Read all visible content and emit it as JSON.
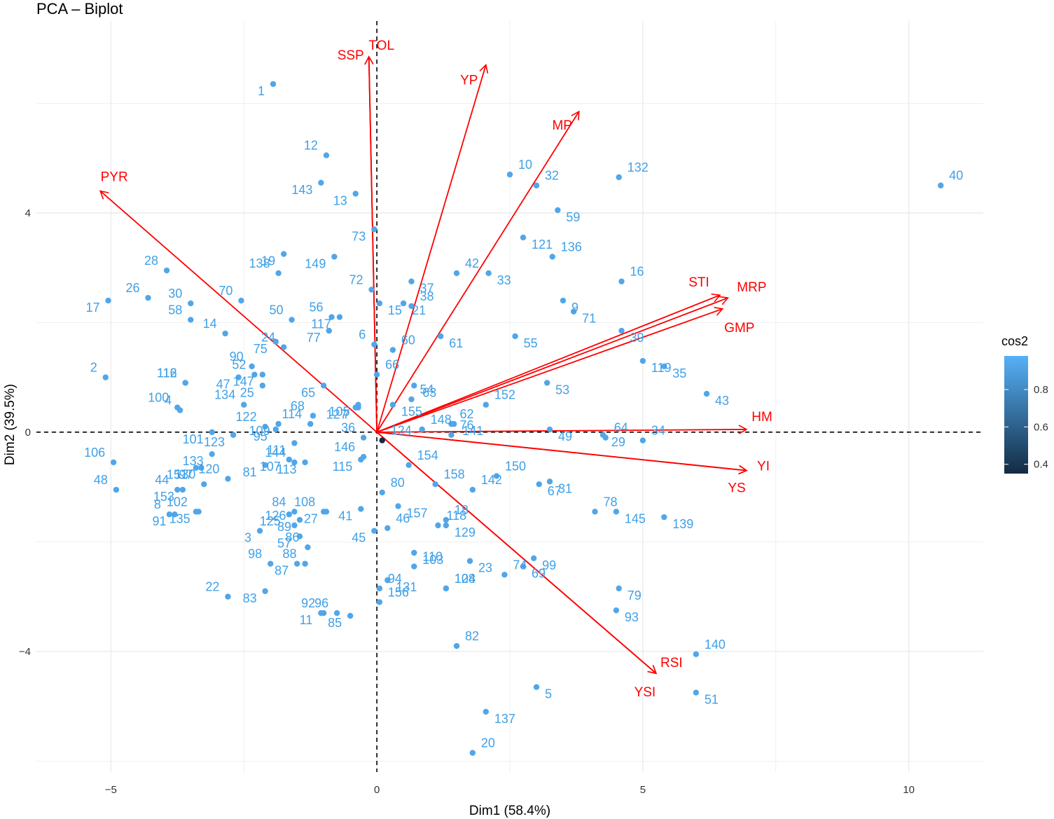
{
  "chart_data": {
    "type": "scatter",
    "title": "PCA – Biplot",
    "xlabel": "Dim1 (58.4%)",
    "ylabel": "Dim2 (39.5%)",
    "xlim": [
      -6.4,
      11.4
    ],
    "ylim": [
      -6.2,
      7.5
    ],
    "x_ticks": [
      -5,
      0,
      5,
      10
    ],
    "x_tick_labels": [
      "−5",
      "0",
      "5",
      "10"
    ],
    "y_ticks": [
      -4,
      0,
      4
    ],
    "y_tick_labels": [
      "−4",
      "0",
      "4"
    ],
    "grid": true,
    "legend": {
      "title": "cos2",
      "position": "right",
      "range": [
        0.35,
        0.98
      ],
      "ticks": [
        0.4,
        0.6,
        0.8
      ],
      "tick_labels": [
        "0.4",
        "0.6",
        "0.8"
      ],
      "color_low": "#132b43",
      "color_high": "#56b1f7"
    },
    "point_color": "#3fa0e8",
    "arrow_color": "#ff0000",
    "individuals": [
      {
        "label": "1",
        "x": -1.95,
        "y": 6.35,
        "cos2": 0.93
      },
      {
        "label": "2",
        "x": -5.1,
        "y": 1.0,
        "cos2": 0.93
      },
      {
        "label": "3",
        "x": -2.2,
        "y": -1.8,
        "cos2": 0.93
      },
      {
        "label": "4",
        "x": -3.7,
        "y": 0.4,
        "cos2": 0.93
      },
      {
        "label": "5",
        "x": 3.0,
        "y": -4.65,
        "cos2": 0.93
      },
      {
        "label": "6",
        "x": -0.05,
        "y": 1.6,
        "cos2": 0.93
      },
      {
        "label": "7",
        "x": -0.35,
        "y": 0.45,
        "cos2": 0.93
      },
      {
        "label": "8",
        "x": -3.9,
        "y": -1.5,
        "cos2": 0.93
      },
      {
        "label": "9",
        "x": 3.5,
        "y": 2.4,
        "cos2": 0.93
      },
      {
        "label": "10",
        "x": 2.5,
        "y": 4.7,
        "cos2": 0.93
      },
      {
        "label": "11",
        "x": -1.05,
        "y": -3.3,
        "cos2": 0.93
      },
      {
        "label": "12",
        "x": -0.95,
        "y": 5.05,
        "cos2": 0.93
      },
      {
        "label": "13",
        "x": -0.4,
        "y": 4.35,
        "cos2": 0.93
      },
      {
        "label": "14",
        "x": -2.85,
        "y": 1.8,
        "cos2": 0.93
      },
      {
        "label": "15",
        "x": 0.05,
        "y": 2.35,
        "cos2": 0.93
      },
      {
        "label": "16",
        "x": 4.6,
        "y": 2.75,
        "cos2": 0.93
      },
      {
        "label": "17",
        "x": -5.05,
        "y": 2.4,
        "cos2": 0.93
      },
      {
        "label": "18",
        "x": 1.3,
        "y": -1.6,
        "cos2": 0.93
      },
      {
        "label": "19",
        "x": -1.75,
        "y": 3.25,
        "cos2": 0.93
      },
      {
        "label": "20",
        "x": 1.8,
        "y": -5.85,
        "cos2": 0.93
      },
      {
        "label": "21",
        "x": 0.5,
        "y": 2.35,
        "cos2": 0.93
      },
      {
        "label": "22",
        "x": -2.8,
        "y": -3.0,
        "cos2": 0.93
      },
      {
        "label": "23",
        "x": 1.75,
        "y": -2.35,
        "cos2": 0.93
      },
      {
        "label": "24",
        "x": -1.75,
        "y": 1.55,
        "cos2": 0.93
      },
      {
        "label": "25",
        "x": -2.15,
        "y": 0.85,
        "cos2": 0.93
      },
      {
        "label": "26",
        "x": -4.3,
        "y": 2.45,
        "cos2": 0.93
      },
      {
        "label": "27",
        "x": -0.95,
        "y": -1.45,
        "cos2": 0.93
      },
      {
        "label": "28",
        "x": -3.95,
        "y": 2.95,
        "cos2": 0.93
      },
      {
        "label": "29",
        "x": 4.25,
        "y": -0.05,
        "cos2": 0.93
      },
      {
        "label": "30",
        "x": -3.5,
        "y": 2.35,
        "cos2": 0.93
      },
      {
        "label": "31",
        "x": 3.25,
        "y": -0.9,
        "cos2": 0.93
      },
      {
        "label": "32",
        "x": 3.0,
        "y": 4.5,
        "cos2": 0.93
      },
      {
        "label": "33",
        "x": 2.1,
        "y": 2.9,
        "cos2": 0.93
      },
      {
        "label": "34",
        "x": 5.0,
        "y": -0.15,
        "cos2": 0.93
      },
      {
        "label": "35",
        "x": 5.4,
        "y": 1.2,
        "cos2": 0.93
      },
      {
        "label": "36",
        "x": -0.25,
        "y": -0.1,
        "cos2": 0.93
      },
      {
        "label": "37",
        "x": 0.65,
        "y": 2.75,
        "cos2": 0.93
      },
      {
        "label": "38",
        "x": 0.65,
        "y": 2.3,
        "cos2": 0.93
      },
      {
        "label": "39",
        "x": 4.6,
        "y": 1.85,
        "cos2": 0.93
      },
      {
        "label": "40",
        "x": 10.6,
        "y": 4.5,
        "cos2": 0.93
      },
      {
        "label": "41",
        "x": -0.3,
        "y": -1.4,
        "cos2": 0.93
      },
      {
        "label": "42",
        "x": 1.5,
        "y": 2.9,
        "cos2": 0.93
      },
      {
        "label": "43",
        "x": 6.2,
        "y": 0.7,
        "cos2": 0.93
      },
      {
        "label": "44",
        "x": -3.75,
        "y": -1.05,
        "cos2": 0.93
      },
      {
        "label": "45",
        "x": -0.05,
        "y": -1.8,
        "cos2": 0.93
      },
      {
        "label": "46",
        "x": 0.2,
        "y": -1.75,
        "cos2": 0.93
      },
      {
        "label": "47",
        "x": -2.6,
        "y": 1.0,
        "cos2": 0.93
      },
      {
        "label": "48",
        "x": -4.9,
        "y": -1.05,
        "cos2": 0.93
      },
      {
        "label": "49",
        "x": 3.25,
        "y": 0.05,
        "cos2": 0.93
      },
      {
        "label": "50",
        "x": -1.6,
        "y": 2.05,
        "cos2": 0.93
      },
      {
        "label": "51",
        "x": 6.0,
        "y": -4.75,
        "cos2": 0.93
      },
      {
        "label": "52",
        "x": -2.3,
        "y": 1.05,
        "cos2": 0.93
      },
      {
        "label": "53",
        "x": 3.2,
        "y": 0.9,
        "cos2": 0.93
      },
      {
        "label": "54",
        "x": 0.65,
        "y": 0.6,
        "cos2": 0.93
      },
      {
        "label": "55",
        "x": 2.6,
        "y": 1.75,
        "cos2": 0.93
      },
      {
        "label": "56",
        "x": -0.85,
        "y": 2.1,
        "cos2": 0.93
      },
      {
        "label": "57",
        "x": -1.45,
        "y": -1.9,
        "cos2": 0.93
      },
      {
        "label": "58",
        "x": -3.5,
        "y": 2.05,
        "cos2": 0.93
      },
      {
        "label": "59",
        "x": 3.4,
        "y": 4.05,
        "cos2": 0.93
      },
      {
        "label": "60",
        "x": 0.3,
        "y": 1.5,
        "cos2": 0.93
      },
      {
        "label": "61",
        "x": 1.2,
        "y": 1.75,
        "cos2": 0.93
      },
      {
        "label": "62",
        "x": 1.4,
        "y": 0.15,
        "cos2": 0.93
      },
      {
        "label": "63",
        "x": 0.7,
        "y": 0.85,
        "cos2": 0.93
      },
      {
        "label": "64",
        "x": 4.3,
        "y": -0.1,
        "cos2": 0.93
      },
      {
        "label": "65",
        "x": -1.0,
        "y": 0.85,
        "cos2": 0.93
      },
      {
        "label": "66",
        "x": 0.0,
        "y": 1.05,
        "cos2": 0.93
      },
      {
        "label": "67",
        "x": 3.05,
        "y": -0.95,
        "cos2": 0.93
      },
      {
        "label": "68",
        "x": -1.2,
        "y": 0.3,
        "cos2": 0.93
      },
      {
        "label": "69",
        "x": 2.75,
        "y": -2.45,
        "cos2": 0.93
      },
      {
        "label": "70",
        "x": -2.55,
        "y": 2.4,
        "cos2": 0.93
      },
      {
        "label": "71",
        "x": 3.7,
        "y": 2.2,
        "cos2": 0.93
      },
      {
        "label": "72",
        "x": -0.1,
        "y": 2.6,
        "cos2": 0.93
      },
      {
        "label": "73",
        "x": -0.05,
        "y": 3.7,
        "cos2": 0.93
      },
      {
        "label": "74",
        "x": 2.4,
        "y": -2.6,
        "cos2": 0.93
      },
      {
        "label": "75",
        "x": -1.9,
        "y": 1.65,
        "cos2": 0.93
      },
      {
        "label": "76",
        "x": 1.4,
        "y": -0.05,
        "cos2": 0.93
      },
      {
        "label": "77",
        "x": -0.9,
        "y": 1.85,
        "cos2": 0.93
      },
      {
        "label": "78",
        "x": 4.1,
        "y": -1.45,
        "cos2": 0.93
      },
      {
        "label": "79",
        "x": 4.55,
        "y": -2.85,
        "cos2": 0.93
      },
      {
        "label": "80",
        "x": 0.1,
        "y": -1.1,
        "cos2": 0.93
      },
      {
        "label": "81",
        "x": -2.1,
        "y": -0.6,
        "cos2": 0.93
      },
      {
        "label": "82",
        "x": 1.5,
        "y": -3.9,
        "cos2": 0.93
      },
      {
        "label": "83",
        "x": -2.1,
        "y": -2.9,
        "cos2": 0.93
      },
      {
        "label": "84",
        "x": -1.55,
        "y": -1.45,
        "cos2": 0.93
      },
      {
        "label": "85",
        "x": -0.5,
        "y": -3.35,
        "cos2": 0.93
      },
      {
        "label": "86",
        "x": -1.3,
        "y": -2.1,
        "cos2": 0.93
      },
      {
        "label": "87",
        "x": -1.5,
        "y": -2.4,
        "cos2": 0.93
      },
      {
        "label": "88",
        "x": -1.35,
        "y": -2.4,
        "cos2": 0.93
      },
      {
        "label": "89",
        "x": -1.45,
        "y": -1.6,
        "cos2": 0.93
      },
      {
        "label": "90",
        "x": -2.35,
        "y": 1.2,
        "cos2": 0.93
      },
      {
        "label": "91",
        "x": -3.8,
        "y": -1.5,
        "cos2": 0.93
      },
      {
        "label": "92",
        "x": -1.0,
        "y": -3.3,
        "cos2": 0.93
      },
      {
        "label": "93",
        "x": 4.5,
        "y": -3.25,
        "cos2": 0.93
      },
      {
        "label": "94",
        "x": 0.05,
        "y": -2.85,
        "cos2": 0.93
      },
      {
        "label": "95",
        "x": -1.9,
        "y": 0.05,
        "cos2": 0.93
      },
      {
        "label": "96",
        "x": -0.75,
        "y": -3.3,
        "cos2": 0.93
      },
      {
        "label": "97",
        "x": -3.3,
        "y": -0.65,
        "cos2": 0.93
      },
      {
        "label": "98",
        "x": -2.0,
        "y": -2.4,
        "cos2": 0.93
      },
      {
        "label": "99",
        "x": 2.95,
        "y": -2.3,
        "cos2": 0.93
      },
      {
        "label": "100",
        "x": -3.75,
        "y": 0.45,
        "cos2": 0.93
      },
      {
        "label": "101",
        "x": -3.1,
        "y": 0.0,
        "cos2": 0.93
      },
      {
        "label": "102",
        "x": -3.4,
        "y": -1.45,
        "cos2": 0.93
      },
      {
        "label": "103",
        "x": 0.7,
        "y": -2.2,
        "cos2": 0.93
      },
      {
        "label": "104",
        "x": 1.3,
        "y": -2.85,
        "cos2": 0.93
      },
      {
        "label": "105",
        "x": -0.35,
        "y": 0.5,
        "cos2": 0.93
      },
      {
        "label": "106",
        "x": -4.95,
        "y": -0.55,
        "cos2": 0.93
      },
      {
        "label": "107",
        "x": -1.65,
        "y": -0.5,
        "cos2": 0.93
      },
      {
        "label": "108",
        "x": -1.0,
        "y": -1.45,
        "cos2": 0.93
      },
      {
        "label": "109",
        "x": -1.85,
        "y": 0.15,
        "cos2": 0.93
      },
      {
        "label": "110",
        "x": 0.7,
        "y": -2.45,
        "cos2": 0.93
      },
      {
        "label": "111",
        "x": -1.55,
        "y": -0.2,
        "cos2": 0.93
      },
      {
        "label": "112",
        "x": -3.6,
        "y": 0.9,
        "cos2": 0.93
      },
      {
        "label": "113",
        "x": -1.35,
        "y": -0.55,
        "cos2": 0.93
      },
      {
        "label": "114",
        "x": -1.25,
        "y": 0.15,
        "cos2": 0.93
      },
      {
        "label": "115",
        "x": -0.3,
        "y": -0.5,
        "cos2": 0.93
      },
      {
        "label": "116",
        "x": -3.6,
        "y": 0.9,
        "cos2": 0.93
      },
      {
        "label": "117",
        "x": -0.7,
        "y": 2.1,
        "cos2": 0.93
      },
      {
        "label": "118",
        "x": 1.15,
        "y": -1.7,
        "cos2": 0.93
      },
      {
        "label": "119",
        "x": 5.0,
        "y": 1.3,
        "cos2": 0.93
      },
      {
        "label": "120",
        "x": -2.8,
        "y": -0.85,
        "cos2": 0.93
      },
      {
        "label": "121",
        "x": 2.75,
        "y": 3.55,
        "cos2": 0.93
      },
      {
        "label": "122",
        "x": -2.1,
        "y": 0.1,
        "cos2": 0.93
      },
      {
        "label": "123",
        "x": -2.7,
        "y": -0.05,
        "cos2": 0.93
      },
      {
        "label": "124",
        "x": 0.1,
        "y": -0.15,
        "cos2": 0.35
      },
      {
        "label": "125",
        "x": -1.65,
        "y": -1.5,
        "cos2": 0.93
      },
      {
        "label": "126",
        "x": -1.55,
        "y": -1.7,
        "cos2": 0.93
      },
      {
        "label": "127",
        "x": -0.4,
        "y": 0.45,
        "cos2": 0.93
      },
      {
        "label": "128",
        "x": 1.3,
        "y": -2.85,
        "cos2": 0.93
      },
      {
        "label": "129",
        "x": 1.3,
        "y": -1.7,
        "cos2": 0.93
      },
      {
        "label": "130",
        "x": -3.25,
        "y": -0.95,
        "cos2": 0.93
      },
      {
        "label": "131",
        "x": 0.2,
        "y": -2.7,
        "cos2": 0.93
      },
      {
        "label": "132",
        "x": 4.55,
        "y": 4.65,
        "cos2": 0.93
      },
      {
        "label": "133",
        "x": -3.1,
        "y": -0.4,
        "cos2": 0.93
      },
      {
        "label": "134",
        "x": -2.5,
        "y": 0.5,
        "cos2": 0.93
      },
      {
        "label": "135",
        "x": -3.35,
        "y": -1.45,
        "cos2": 0.93
      },
      {
        "label": "136",
        "x": 3.3,
        "y": 3.2,
        "cos2": 0.93
      },
      {
        "label": "137",
        "x": 2.05,
        "y": -5.1,
        "cos2": 0.93
      },
      {
        "label": "138",
        "x": -1.85,
        "y": 2.9,
        "cos2": 0.93
      },
      {
        "label": "139",
        "x": 5.4,
        "y": -1.55,
        "cos2": 0.93
      },
      {
        "label": "140",
        "x": 6.0,
        "y": -4.05,
        "cos2": 0.93
      },
      {
        "label": "141",
        "x": 1.45,
        "y": 0.15,
        "cos2": 0.93
      },
      {
        "label": "142",
        "x": 1.8,
        "y": -1.05,
        "cos2": 0.93
      },
      {
        "label": "143",
        "x": -1.05,
        "y": 4.55,
        "cos2": 0.93
      },
      {
        "label": "144",
        "x": -1.55,
        "y": -0.55,
        "cos2": 0.93
      },
      {
        "label": "145",
        "x": 4.5,
        "y": -1.45,
        "cos2": 0.93
      },
      {
        "label": "146",
        "x": -0.25,
        "y": -0.45,
        "cos2": 0.93
      },
      {
        "label": "147",
        "x": -2.15,
        "y": 1.05,
        "cos2": 0.93
      },
      {
        "label": "148",
        "x": 0.85,
        "y": 0.05,
        "cos2": 0.93
      },
      {
        "label": "149",
        "x": -0.8,
        "y": 3.2,
        "cos2": 0.93
      },
      {
        "label": "150",
        "x": 2.25,
        "y": -0.8,
        "cos2": 0.93
      },
      {
        "label": "151",
        "x": -3.4,
        "y": -0.65,
        "cos2": 0.93
      },
      {
        "label": "152",
        "x": 2.05,
        "y": 0.5,
        "cos2": 0.93
      },
      {
        "label": "153",
        "x": -3.65,
        "y": -1.05,
        "cos2": 0.93
      },
      {
        "label": "154",
        "x": 0.6,
        "y": -0.6,
        "cos2": 0.93
      },
      {
        "label": "155",
        "x": 0.3,
        "y": 0.5,
        "cos2": 0.93
      },
      {
        "label": "156",
        "x": 0.05,
        "y": -3.1,
        "cos2": 0.93
      },
      {
        "label": "157",
        "x": 0.4,
        "y": -1.35,
        "cos2": 0.93
      },
      {
        "label": "158",
        "x": 1.1,
        "y": -0.95,
        "cos2": 0.93
      }
    ],
    "variables": [
      {
        "label": "TOL",
        "x": -0.15,
        "y": 6.85
      },
      {
        "label": "SSP",
        "x": -0.15,
        "y": 6.85
      },
      {
        "label": "YP",
        "x": 2.05,
        "y": 6.7
      },
      {
        "label": "MP",
        "x": 3.8,
        "y": 5.85
      },
      {
        "label": "PYR",
        "x": -5.2,
        "y": 4.4
      },
      {
        "label": "STI",
        "x": 6.45,
        "y": 2.5
      },
      {
        "label": "MRP",
        "x": 6.6,
        "y": 2.45
      },
      {
        "label": "GMP",
        "x": 6.5,
        "y": 2.25
      },
      {
        "label": "HM",
        "x": 6.95,
        "y": 0.05
      },
      {
        "label": "YI",
        "x": 6.95,
        "y": -0.7
      },
      {
        "label": "YS",
        "x": 6.95,
        "y": -0.7
      },
      {
        "label": "RSI",
        "x": 5.25,
        "y": -4.4
      },
      {
        "label": "YSI",
        "x": 5.25,
        "y": -4.4
      }
    ]
  }
}
